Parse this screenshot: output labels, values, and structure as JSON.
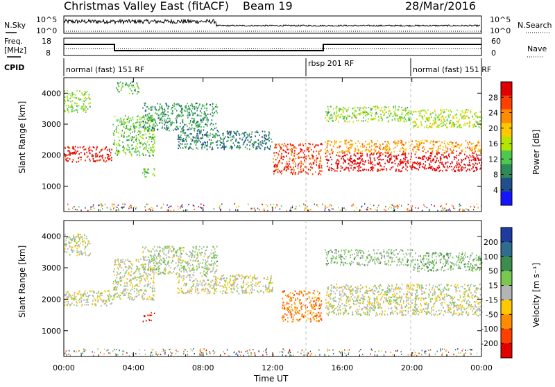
{
  "title": {
    "station": "Christmas Valley East (fitACF)",
    "beam": "Beam 19",
    "date": "28/Mar/2016"
  },
  "header": {
    "nsky_label": "N.Sky",
    "nsky_ticks": [
      "10^5",
      "10^0"
    ],
    "nsearch_label": "N.Search",
    "nsearch_ticks": [
      "10^5",
      "10^0"
    ],
    "freq_label_1": "Freq.",
    "freq_label_2": "[MHz]",
    "freq_ticks": [
      "18",
      "8"
    ],
    "nave_label": "Nave",
    "nave_ticks": [
      "60",
      "0"
    ],
    "cpid_label": "CPID",
    "cpid_segments": [
      "normal (fast) 151 RF",
      "rbsp 201 RF",
      "normal (fast) 151 RF"
    ]
  },
  "chart_data": [
    {
      "type": "heatmap",
      "name": "power",
      "ylabel": "Slant Range [km]",
      "xlabel": "Time UT",
      "x_ticks": [
        "00:00",
        "04:00",
        "08:00",
        "12:00",
        "16:00",
        "20:00",
        "00:00"
      ],
      "y_ticks": [
        "1000",
        "2000",
        "3000",
        "4000"
      ],
      "ylim": [
        180,
        4500
      ],
      "xlim_hours": [
        0,
        24
      ],
      "colorbar_label": "Power [dB]",
      "colorbar_ticks": [
        "28",
        "24",
        "20",
        "16",
        "12",
        "8",
        "4"
      ],
      "colorbar_colors": [
        "#e00000",
        "#ff4000",
        "#ff8c00",
        "#ffc800",
        "#b4e600",
        "#50c850",
        "#2e8b57",
        "#20508c",
        "#1414ff"
      ],
      "echo_regions": [
        {
          "t0": 0.0,
          "t1": 2.8,
          "r0": 1800,
          "r1": 2300,
          "level": 0.95
        },
        {
          "t0": 0.0,
          "t1": 1.5,
          "r0": 3400,
          "r1": 4100,
          "level": 0.45
        },
        {
          "t0": 2.8,
          "t1": 5.2,
          "r0": 2000,
          "r1": 3300,
          "level": 0.4
        },
        {
          "t0": 3.0,
          "t1": 4.3,
          "r0": 4000,
          "r1": 4400,
          "level": 0.35
        },
        {
          "t0": 4.5,
          "t1": 8.8,
          "r0": 2800,
          "r1": 3700,
          "level": 0.3
        },
        {
          "t0": 6.5,
          "t1": 12.0,
          "r0": 2200,
          "r1": 2800,
          "level": 0.25
        },
        {
          "t0": 12.0,
          "t1": 14.8,
          "r0": 1400,
          "r1": 2400,
          "level": 0.85
        },
        {
          "t0": 15.0,
          "t1": 24.0,
          "r0": 1500,
          "r1": 2100,
          "level": 1.0
        },
        {
          "t0": 15.0,
          "t1": 24.0,
          "r0": 2100,
          "r1": 2500,
          "level": 0.7
        },
        {
          "t0": 15.0,
          "t1": 20.0,
          "r0": 3100,
          "r1": 3600,
          "level": 0.45
        },
        {
          "t0": 20.0,
          "t1": 24.0,
          "r0": 2900,
          "r1": 3500,
          "level": 0.5
        },
        {
          "t0": 4.5,
          "t1": 5.2,
          "r0": 1300,
          "r1": 1600,
          "level": 0.4
        }
      ]
    },
    {
      "type": "heatmap",
      "name": "velocity",
      "ylabel": "Slant Range [km]",
      "xlabel": "Time UT",
      "x_ticks": [
        "00:00",
        "04:00",
        "08:00",
        "12:00",
        "16:00",
        "20:00",
        "00:00"
      ],
      "y_ticks": [
        "1000",
        "2000",
        "3000",
        "4000"
      ],
      "ylim": [
        180,
        4500
      ],
      "xlim_hours": [
        0,
        24
      ],
      "colorbar_label": "Velocity [m s⁻¹]",
      "colorbar_ticks": [
        "200",
        "100",
        "50",
        "15",
        "-15",
        "-50",
        "-100",
        "-200"
      ],
      "colorbar_colors": [
        "#1e3ca0",
        "#2e6e8c",
        "#3c8c50",
        "#78c850",
        "#b4b4b4",
        "#ffc800",
        "#ff8c00",
        "#ff4000",
        "#e00000"
      ],
      "echo_regions": [
        {
          "t0": 0.0,
          "t1": 2.8,
          "r0": 1800,
          "r1": 2300,
          "level": 0.5
        },
        {
          "t0": 0.0,
          "t1": 1.5,
          "r0": 3400,
          "r1": 4100,
          "level": 0.5
        },
        {
          "t0": 2.8,
          "t1": 5.2,
          "r0": 2000,
          "r1": 3300,
          "level": 0.5
        },
        {
          "t0": 4.5,
          "t1": 8.8,
          "r0": 2800,
          "r1": 3700,
          "level": 0.55
        },
        {
          "t0": 6.5,
          "t1": 12.0,
          "r0": 2200,
          "r1": 2800,
          "level": 0.5
        },
        {
          "t0": 12.5,
          "t1": 14.8,
          "r0": 1300,
          "r1": 2300,
          "level": 0.25
        },
        {
          "t0": 15.0,
          "t1": 24.0,
          "r0": 1500,
          "r1": 2500,
          "level": 0.5
        },
        {
          "t0": 15.0,
          "t1": 20.0,
          "r0": 3100,
          "r1": 3600,
          "level": 0.58
        },
        {
          "t0": 20.0,
          "t1": 24.0,
          "r0": 2900,
          "r1": 3500,
          "level": 0.62
        },
        {
          "t0": 4.5,
          "t1": 5.2,
          "r0": 1300,
          "r1": 1600,
          "level": 0.05
        }
      ]
    }
  ]
}
